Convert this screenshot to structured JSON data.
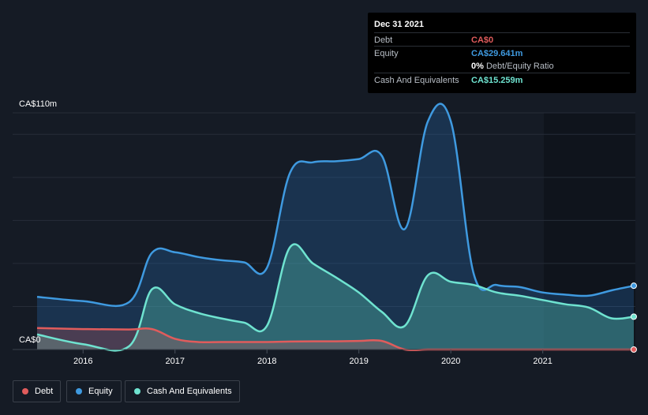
{
  "tooltip": {
    "date": "Dec 31 2021",
    "rows": [
      {
        "label": "Debt",
        "value": "CA$0",
        "color": "#e05c5c"
      },
      {
        "label": "Equity",
        "value": "CA$29.641m",
        "color": "#3f9ae0"
      },
      {
        "label": "",
        "value": "0%",
        "suffix": " Debt/Equity Ratio",
        "color": "#ffffff"
      },
      {
        "label": "Cash And Equivalents",
        "value": "CA$15.259m",
        "color": "#6fe3d0"
      }
    ]
  },
  "y_axis": {
    "top_label": "CA$110m",
    "bottom_label": "CA$0"
  },
  "legend": [
    {
      "label": "Debt",
      "color": "#e05c5c"
    },
    {
      "label": "Equity",
      "color": "#3f9ae0"
    },
    {
      "label": "Cash And Equivalents",
      "color": "#6fe3d0"
    }
  ],
  "chart_data": {
    "type": "area",
    "x_tick_labels": [
      "2016",
      "2017",
      "2018",
      "2019",
      "2020",
      "2021"
    ],
    "x_ticks": [
      2016,
      2017,
      2018,
      2019,
      2020,
      2021
    ],
    "xlim": [
      2015.5,
      2021.99
    ],
    "ylim": [
      0,
      110
    ],
    "series": [
      {
        "name": "Equity",
        "color": "#3f9ae0",
        "x": [
          2015.5,
          2016.0,
          2016.5,
          2016.75,
          2017.0,
          2017.25,
          2017.5,
          2017.75,
          2018.0,
          2018.25,
          2018.5,
          2018.75,
          2019.0,
          2019.25,
          2019.5,
          2019.75,
          2020.0,
          2020.25,
          2020.5,
          2020.75,
          2021.0,
          2021.25,
          2021.5,
          2021.75,
          2021.99
        ],
        "values": [
          24.5,
          22.5,
          22.0,
          45.0,
          45.2,
          43.0,
          41.5,
          40.5,
          38.0,
          82.0,
          87.0,
          87.5,
          88.5,
          90.0,
          56.0,
          106.0,
          106.0,
          35.0,
          30.0,
          29.0,
          26.5,
          25.5,
          25.0,
          27.5,
          29.641
        ]
      },
      {
        "name": "Cash And Equivalents",
        "color": "#6fe3d0",
        "x": [
          2015.5,
          2016.0,
          2016.5,
          2016.75,
          2017.0,
          2017.25,
          2017.5,
          2017.75,
          2018.0,
          2018.25,
          2018.5,
          2018.75,
          2019.0,
          2019.25,
          2019.5,
          2019.75,
          2020.0,
          2020.25,
          2020.5,
          2020.75,
          2021.0,
          2021.25,
          2021.5,
          2021.75,
          2021.99
        ],
        "values": [
          7.0,
          2.5,
          1.5,
          28.0,
          21.0,
          17.0,
          14.5,
          12.5,
          11.0,
          47.5,
          40.0,
          33.5,
          26.5,
          17.5,
          11.0,
          34.5,
          31.5,
          30.0,
          26.5,
          25.0,
          23.0,
          21.0,
          19.5,
          14.5,
          15.259
        ]
      },
      {
        "name": "Debt",
        "color": "#e05c5c",
        "x": [
          2015.5,
          2016.0,
          2016.5,
          2016.75,
          2017.0,
          2017.25,
          2017.5,
          2017.75,
          2018.0,
          2018.25,
          2018.5,
          2018.75,
          2019.0,
          2019.25,
          2019.5,
          2019.75,
          2020.0,
          2020.25,
          2020.5,
          2020.75,
          2021.0,
          2021.25,
          2021.5,
          2021.75,
          2021.99
        ],
        "values": [
          10.0,
          9.5,
          9.3,
          9.5,
          5.0,
          3.5,
          3.5,
          3.5,
          3.5,
          3.7,
          3.8,
          3.8,
          4.0,
          4.0,
          0.0,
          0.0,
          0.0,
          0.0,
          0.0,
          0.0,
          0.0,
          0.0,
          0.0,
          0.0,
          0.0
        ]
      }
    ],
    "grid": true,
    "legend_position": "bottom-left"
  }
}
